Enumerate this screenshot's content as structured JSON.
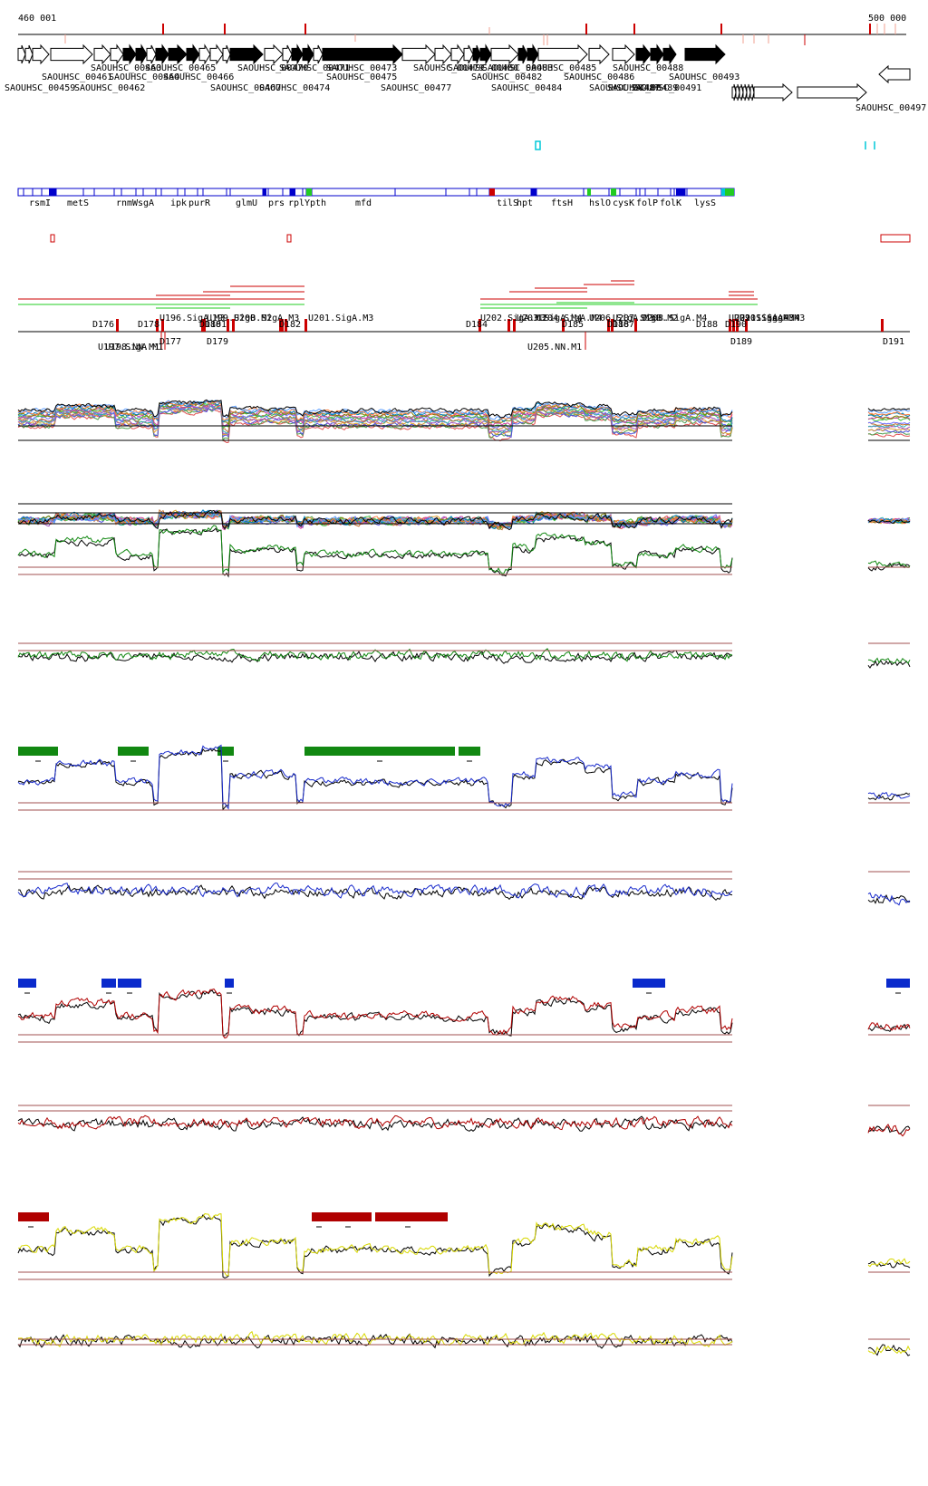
{
  "coords": {
    "start": "460 001",
    "end": "500 000"
  },
  "colors": {
    "gene_black": "#000000",
    "blue_box": "#0000cc",
    "cds_green": "#22cc22",
    "red": "#cc0000",
    "cyan": "#00c8d8",
    "green_track": "#118811",
    "blue_track": "#1a2ccc",
    "red_track": "#b00000",
    "yellow_track": "#d8d800",
    "threshold": "#a05050",
    "green_seg": "#118811",
    "blue_seg": "#0a2acc",
    "red_seg": "#b00000"
  },
  "locus_tags": [
    "SAOUHSC_00459",
    "SAOUHSC_00461",
    "SAOUHSC_00462",
    "SAOUHSC_00463",
    "SAOUHSC_00464",
    "SAOUHSC_00465",
    "SAOUHSC_00466",
    "SAOUHSC_00467",
    "SAOUHSC_00470",
    "SAOUHSC_00471",
    "SAOUHSC_00473",
    "SAOUHSC_00474",
    "SAOUHSC_00475",
    "SAOUHSC_00477",
    "SAOUHSC_00479",
    "SAOUHSC_00480",
    "SAOUHSC_00482",
    "SAOUHSC_00483",
    "SAOUHSC_00484",
    "SAOUHSC_00485",
    "SAOUHSC_00486",
    "SAOUHSC_00487",
    "SAOUHSC_00488",
    "SAOUHSC_00489",
    "SAOUHSC_00491",
    "SAOUHSC_00493",
    "SAOUHSC_00497"
  ],
  "gene_names": [
    "rsmI",
    "metS",
    "rnmW",
    "sgA",
    "ipk",
    "purR",
    "glmU",
    "prs",
    "rplY",
    "pth",
    "mfd",
    "tilS",
    "hpt",
    "ftsH",
    "hslO",
    "cysK",
    "folP",
    "folK",
    "lysS"
  ],
  "region_labels": {
    "D": [
      "D176",
      "D178",
      "D177",
      "D180",
      "D181",
      "D179",
      "D182",
      "D184",
      "D185",
      "D186",
      "D187",
      "D188",
      "D190",
      "D189",
      "D191"
    ],
    "U": [
      "U196.SigA.M3",
      "U197.SigA.M1",
      "U199.SigB.M2",
      "U200.SigA.M3",
      "U201.SigA.M3",
      "U198.NN.M1",
      "U202.SigA.M3",
      "U203.SigA.M4",
      "U204.SigA.M4",
      "U205.NN.M1",
      "U206.SigA.M3",
      "U207.SigB.M2",
      "U208.SigA.M4",
      "U209.SigA.M3",
      "U210.SigA.M4",
      "U211.SigA.M3"
    ]
  }
}
